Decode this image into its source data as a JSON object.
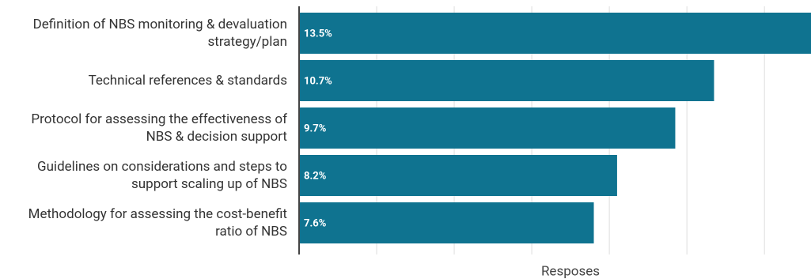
{
  "chart_data": {
    "type": "bar",
    "orientation": "horizontal",
    "categories": [
      "Definition of NBS monitoring & devaluation strategy/plan",
      "Technical references & standards",
      "Protocol for assessing the effectiveness of NBS & decision support",
      "Guidelines on considerations and steps to support scaling up of NBS",
      "Methodology for assessing the cost-benefit ratio of NBS"
    ],
    "values": [
      13.5,
      10.7,
      9.7,
      8.2,
      7.6
    ],
    "value_labels": [
      "13.5%",
      "10.7%",
      "9.7%",
      "8.2%",
      "7.6%"
    ],
    "color": "#0f7390",
    "xlim": [
      0,
      13.2
    ],
    "xticks": [
      2,
      4,
      6,
      8,
      10,
      12
    ],
    "grid": true,
    "xlabel": "Resposes"
  }
}
